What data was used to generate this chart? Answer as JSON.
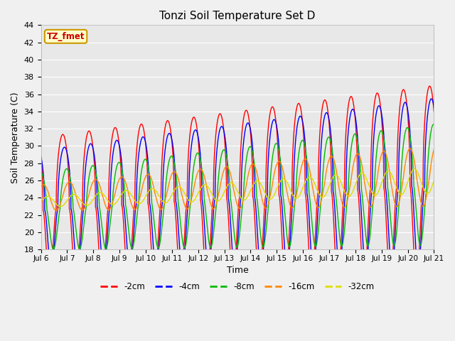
{
  "title": "Tonzi Soil Temperature Set D",
  "xlabel": "Time",
  "ylabel": "Soil Temperature (C)",
  "ylim": [
    18,
    44
  ],
  "yticks": [
    18,
    20,
    22,
    24,
    26,
    28,
    30,
    32,
    34,
    36,
    38,
    40,
    42,
    44
  ],
  "annotation_text": "TZ_fmet",
  "annotation_color": "#cc0000",
  "annotation_bg": "#ffffcc",
  "annotation_border": "#cc9900",
  "series_colors": {
    "-2cm": "#ff0000",
    "-4cm": "#0000ff",
    "-8cm": "#00bb00",
    "-16cm": "#ff8800",
    "-32cm": "#dddd00"
  },
  "series_labels": [
    "-2cm",
    "-4cm",
    "-8cm",
    "-16cm",
    "-32cm"
  ],
  "fig_bg": "#f0f0f0",
  "plot_bg": "#e8e8e8",
  "n_days": 15,
  "start_day": 6,
  "legend_colors": [
    "#ff0000",
    "#0000ff",
    "#00bb00",
    "#ff8800",
    "#dddd00"
  ],
  "legend_labels": [
    "-2cm",
    "-4cm",
    "-8cm",
    "-16cm",
    "-32cm"
  ]
}
